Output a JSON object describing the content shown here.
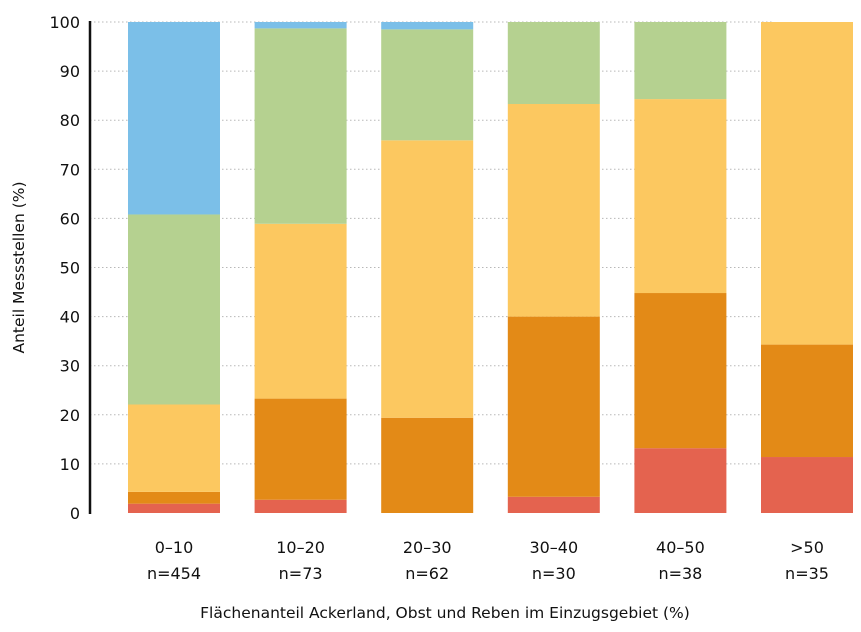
{
  "chart_data": {
    "type": "bar",
    "stacked": true,
    "title": "",
    "xlabel": "Flächenanteil Ackerland, Obst und Reben im Einzugsgebiet (%)",
    "ylabel": "Anteil Messstellen (%)",
    "ylim": [
      0,
      100
    ],
    "yticks": [
      0,
      10,
      20,
      30,
      40,
      50,
      60,
      70,
      80,
      90,
      100
    ],
    "grid": "horizontal dotted",
    "legend": "none",
    "categories": [
      "0–10",
      "10–20",
      "20–30",
      "30–40",
      "40–50",
      ">50"
    ],
    "category_counts": [
      "n=454",
      "n=73",
      "n=62",
      "n=30",
      "n=38",
      "n=35"
    ],
    "series": [
      {
        "color": "#e4634f",
        "values": [
          1.9,
          2.7,
          0,
          3.3,
          13.2,
          11.4
        ]
      },
      {
        "color": "#e38a17",
        "values": [
          2.4,
          20.6,
          19.4,
          36.7,
          31.6,
          22.9
        ]
      },
      {
        "color": "#fcc860",
        "values": [
          17.8,
          35.6,
          56.5,
          43.3,
          39.5,
          65.7
        ]
      },
      {
        "color": "#b5d190",
        "values": [
          38.7,
          39.8,
          22.6,
          16.7,
          15.7,
          0
        ]
      },
      {
        "color": "#7bbfe8",
        "values": [
          39.2,
          1.3,
          1.5,
          0,
          0,
          0
        ]
      }
    ]
  }
}
